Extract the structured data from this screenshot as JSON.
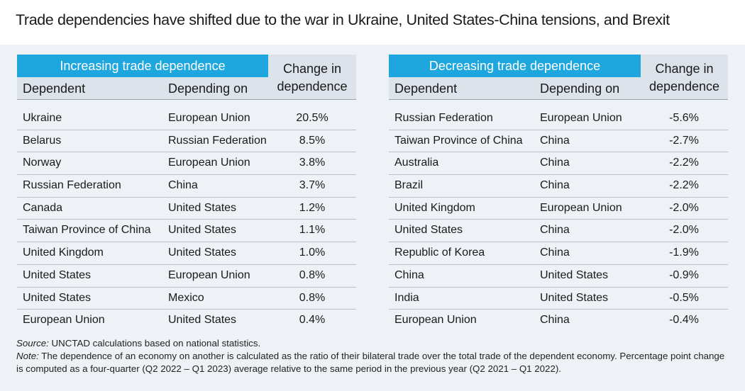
{
  "title": "Trade dependencies have shifted due to the war in Ukraine, United States-China tensions, and Brexit",
  "chart_data": [
    {
      "type": "table",
      "group_label": "Increasing trade dependence",
      "columns": [
        "Dependent",
        "Depending on",
        "Change in dependence"
      ],
      "change_header_line1": "Change in",
      "change_header_line2": "dependence",
      "rows": [
        {
          "dependent": "Ukraine",
          "depending_on": "European Union",
          "change": "20.5%"
        },
        {
          "dependent": "Belarus",
          "depending_on": "Russian Federation",
          "change": "8.5%"
        },
        {
          "dependent": "Norway",
          "depending_on": "European Union",
          "change": "3.8%"
        },
        {
          "dependent": "Russian Federation",
          "depending_on": "China",
          "change": "3.7%"
        },
        {
          "dependent": "Canada",
          "depending_on": "United States",
          "change": "1.2%"
        },
        {
          "dependent": "Taiwan Province of China",
          "depending_on": "United States",
          "change": "1.1%"
        },
        {
          "dependent": "United Kingdom",
          "depending_on": "United States",
          "change": "1.0%"
        },
        {
          "dependent": "United States",
          "depending_on": "European Union",
          "change": "0.8%"
        },
        {
          "dependent": "United States",
          "depending_on": "Mexico",
          "change": "0.8%"
        },
        {
          "dependent": "European Union",
          "depending_on": "United States",
          "change": "0.4%"
        }
      ]
    },
    {
      "type": "table",
      "group_label": "Decreasing trade dependence",
      "columns": [
        "Dependent",
        "Depending on",
        "Change in dependence"
      ],
      "change_header_line1": "Change in",
      "change_header_line2": "dependence",
      "rows": [
        {
          "dependent": "Russian Federation",
          "depending_on": "European Union",
          "change": "-5.6%"
        },
        {
          "dependent": "Taiwan Province of China",
          "depending_on": "China",
          "change": "-2.7%"
        },
        {
          "dependent": "Australia",
          "depending_on": "China",
          "change": "-2.2%"
        },
        {
          "dependent": "Brazil",
          "depending_on": "China",
          "change": "-2.2%"
        },
        {
          "dependent": "United Kingdom",
          "depending_on": "European Union",
          "change": "-2.0%"
        },
        {
          "dependent": "United States",
          "depending_on": "China",
          "change": "-2.0%"
        },
        {
          "dependent": "Republic of Korea",
          "depending_on": "China",
          "change": "-1.9%"
        },
        {
          "dependent": "China",
          "depending_on": "United States",
          "change": "-0.9%"
        },
        {
          "dependent": "India",
          "depending_on": "United States",
          "change": "-0.5%"
        },
        {
          "dependent": "European Union",
          "depending_on": "China",
          "change": "-0.4%"
        }
      ]
    }
  ],
  "notes": {
    "source_label": "Source:",
    "source_text": " UNCTAD calculations based on national statistics.",
    "note_label": "Note:",
    "note_text": " The dependence of an economy on another is calculated as the ratio of their bilateral trade over the total trade of the dependent economy. Percentage point change is computed as a four-quarter (Q2 2022 – Q1 2023) average relative to the same period in the previous year (Q2 2021 – Q1 2022)."
  },
  "colors": {
    "banner": "#1ea6de",
    "header_bg": "#dde3ea",
    "panel_bg": "#eef1f5"
  }
}
